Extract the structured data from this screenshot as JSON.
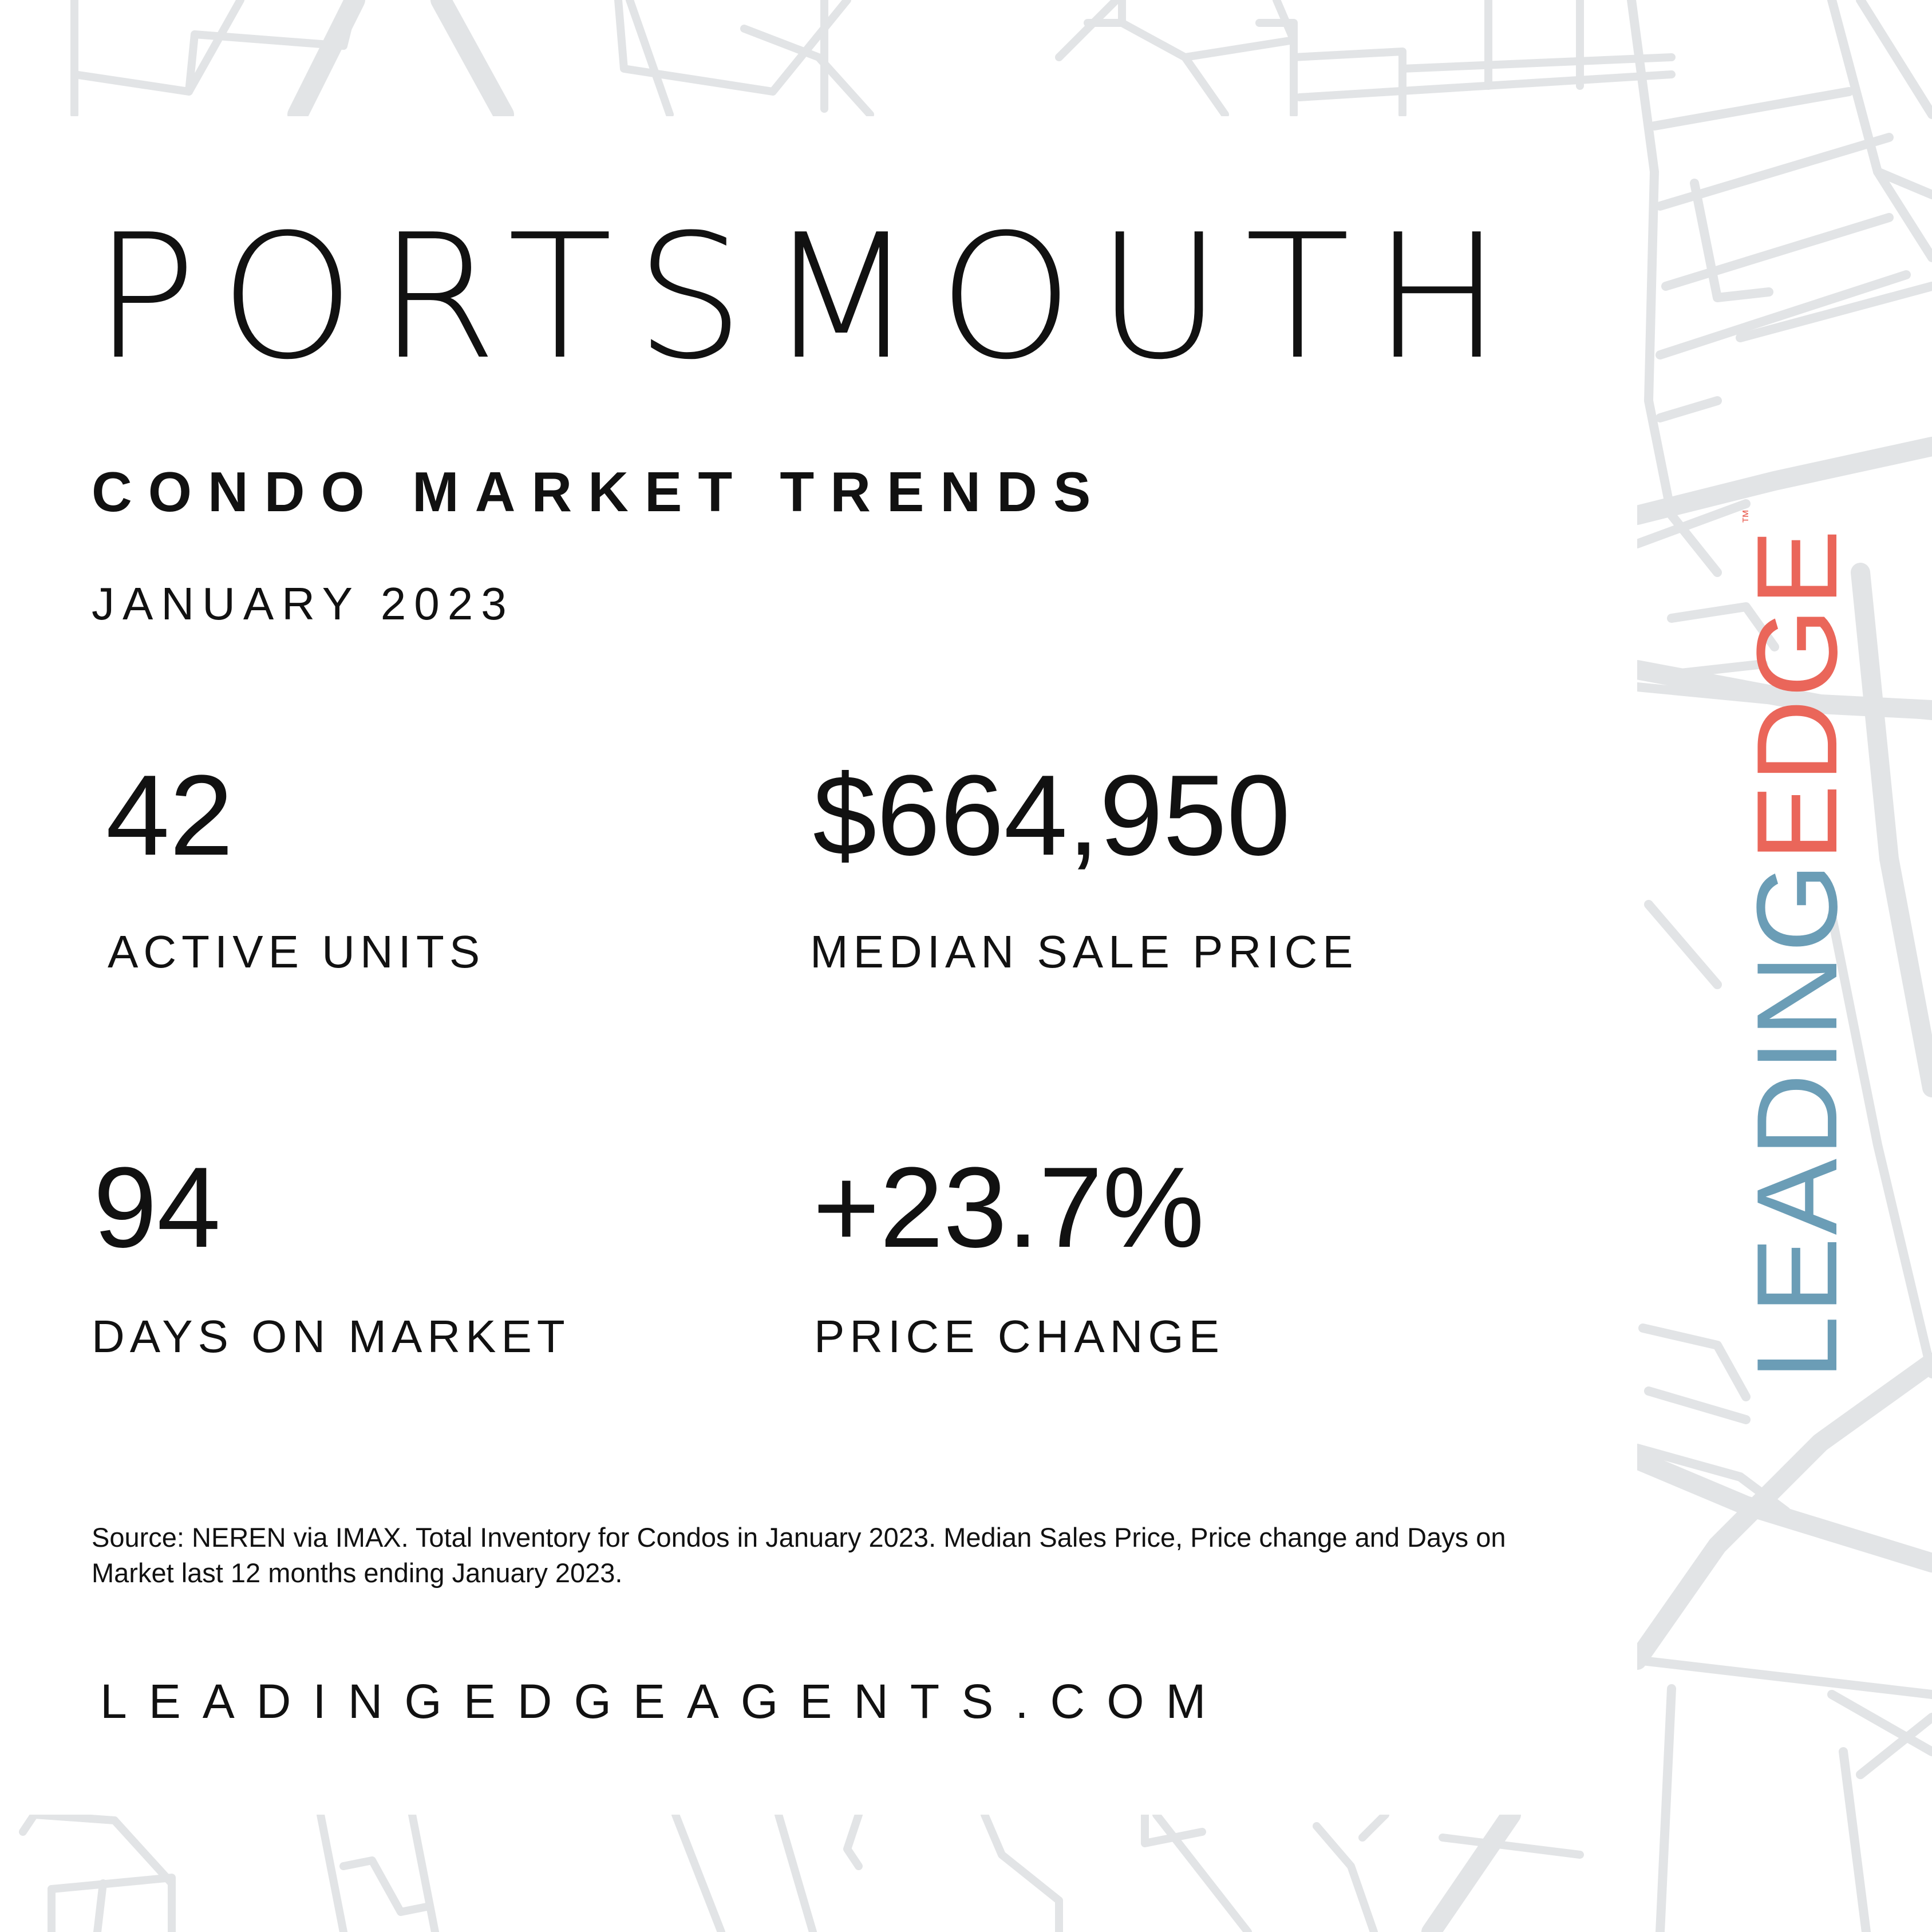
{
  "header": {
    "city": "PORTSMOUTH",
    "subtitle": "CONDO MARKET TRENDS",
    "period": "JANUARY 2023"
  },
  "stats": [
    {
      "value": "42",
      "label": "ACTIVE UNITS"
    },
    {
      "value": "$664,950",
      "label": "MEDIAN SALE PRICE"
    },
    {
      "value": "94",
      "label": "DAYS ON MARKET"
    },
    {
      "value": "+23.7%",
      "label": "PRICE CHANGE"
    }
  ],
  "source": "Source: NEREN via IMAX. Total Inventory for Condos in January 2023. Median Sales Price, Price change and Days on Market last 12 months ending January 2023.",
  "website": "LEADINGEDGEAGENTS.COM",
  "logo": {
    "part1": "LEADING",
    "part2": "EDGE",
    "trademark": "™",
    "color_leading": "#6b9db6",
    "color_edge": "#ea665a"
  },
  "background": {
    "icon": "street-map-pattern"
  }
}
